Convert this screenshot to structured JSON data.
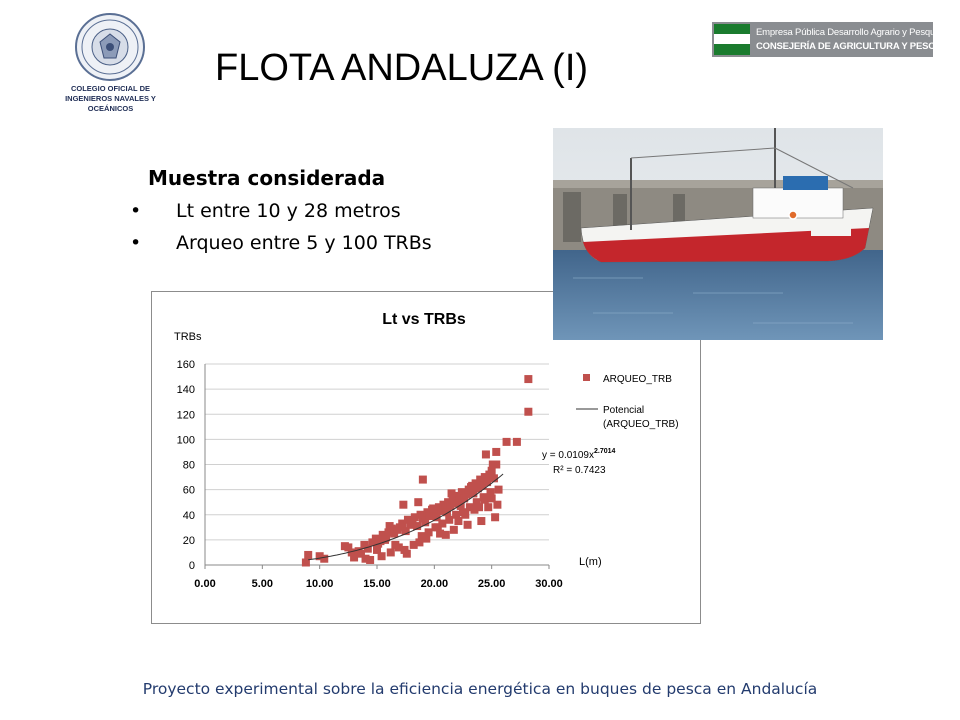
{
  "header": {
    "title": "FLOTA ANDALUZA (I)",
    "logo_left_line1": "COLEGIO OFICIAL DE",
    "logo_left_line2": "INGENIEROS NAVALES Y OCEÁNICOS",
    "logo_right_line1": "Empresa Pública Desarrollo Agrario y Pesquero",
    "logo_right_line2": "CONSEJERÍA DE AGRICULTURA Y PESCA"
  },
  "sample": {
    "heading": "Muestra considerada",
    "bullets": [
      "Lt entre 10 y 28 metros",
      "Arqueo entre 5 y 100 TRBs"
    ],
    "bullet_symbol": "•"
  },
  "footer": "Proyecto experimental sobre la eficiencia energética en buques de pesca en Andalucía",
  "colors": {
    "marker": "#c0504d",
    "fit_line": "#333333",
    "footer_text": "#233b6e"
  },
  "chart_data": {
    "type": "scatter",
    "title": "Lt vs TRBs",
    "ylabel": "TRBs",
    "xlabel": "L(m)",
    "xlim": [
      0,
      30
    ],
    "ylim": [
      0,
      160
    ],
    "x_ticks": [
      "0.00",
      "5.00",
      "10.00",
      "15.00",
      "20.00",
      "25.00",
      "30.00"
    ],
    "y_ticks": [
      "0",
      "20",
      "40",
      "60",
      "80",
      "100",
      "120",
      "140",
      "160"
    ],
    "grid": true,
    "legend_position": "right",
    "legend": [
      "ARQUEO_TRB",
      "Potencial",
      "(ARQUEO_TRB)"
    ],
    "equation_prefix": "y = 0.0109x",
    "equation_exponent": "2.7014",
    "r_squared": "R² = 0.7423",
    "trendline": {
      "type": "power",
      "coefficient": 0.0109,
      "exponent": 2.7014,
      "x_range": [
        9,
        26
      ]
    },
    "series": [
      {
        "name": "ARQUEO_TRB",
        "x": [
          8.8,
          9.0,
          10.0,
          10.4,
          12.2,
          12.8,
          13.0,
          13.4,
          13.6,
          13.9,
          14.2,
          14.6,
          14.9,
          15.1,
          15.3,
          15.5,
          15.8,
          16.0,
          16.3,
          16.5,
          16.8,
          17.0,
          17.2,
          17.5,
          17.7,
          17.9,
          18.1,
          18.3,
          18.5,
          18.8,
          19.0,
          19.2,
          19.4,
          19.6,
          19.8,
          20.0,
          20.2,
          20.4,
          20.6,
          20.8,
          21.0,
          21.2,
          21.4,
          21.6,
          21.8,
          22.0,
          22.2,
          22.4,
          22.6,
          22.8,
          23.0,
          23.2,
          23.4,
          23.6,
          23.8,
          24.0,
          24.2,
          24.4,
          24.6,
          24.8,
          25.0,
          25.2,
          25.4,
          25.6,
          14.4,
          15.0,
          16.2,
          16.9,
          17.6,
          18.2,
          18.9,
          19.5,
          20.1,
          20.7,
          21.3,
          21.9,
          22.5,
          23.1,
          23.7,
          24.3,
          24.9,
          17.3,
          18.6,
          19.9,
          21.1,
          22.3,
          23.5,
          24.7,
          15.7,
          16.6,
          20.5,
          21.7,
          22.9,
          24.1,
          25.3,
          12.5,
          14.0,
          19.0,
          21.5,
          23.3,
          24.5,
          25.1,
          25.4,
          26.3,
          27.2,
          28.2,
          28.2,
          15.4,
          16.1,
          17.4,
          18.7,
          19.3,
          20.3,
          21.0,
          22.1,
          22.7,
          23.9,
          24.4,
          25.0,
          25.5
        ],
        "y": [
          2.0,
          8.0,
          7.0,
          5.0,
          15.0,
          10.0,
          6.0,
          11.0,
          9.0,
          16.0,
          13.0,
          18.0,
          21.0,
          17.0,
          19.0,
          24.0,
          22.0,
          26.0,
          29.0,
          25.0,
          28.0,
          30.0,
          33.0,
          27.0,
          36.0,
          32.0,
          35.0,
          38.0,
          31.0,
          40.0,
          37.0,
          34.0,
          42.0,
          39.0,
          44.0,
          41.0,
          38.0,
          46.0,
          43.0,
          48.0,
          45.0,
          50.0,
          47.0,
          52.0,
          49.0,
          55.0,
          51.0,
          58.0,
          53.0,
          56.0,
          60.0,
          62.0,
          57.0,
          65.0,
          61.0,
          68.0,
          63.0,
          70.0,
          66.0,
          72.0,
          75.0,
          69.0,
          80.0,
          60.0,
          4.0,
          12.0,
          10.0,
          14.0,
          9.0,
          16.0,
          23.0,
          26.0,
          30.0,
          33.0,
          36.0,
          40.0,
          42.0,
          46.0,
          50.0,
          54.0,
          58.0,
          48.0,
          50.0,
          45.0,
          42.0,
          47.0,
          44.0,
          46.0,
          20.0,
          16.0,
          25.0,
          28.0,
          32.0,
          35.0,
          38.0,
          14.0,
          5.0,
          68.0,
          57.0,
          63.0,
          88.0,
          80.0,
          90.0,
          98.0,
          98.0,
          148.0,
          122.0,
          7.0,
          31.0,
          12.0,
          18.0,
          21.0,
          30.0,
          24.0,
          35.0,
          40.0,
          46.0,
          52.0,
          53.0,
          48.0
        ]
      }
    ]
  }
}
